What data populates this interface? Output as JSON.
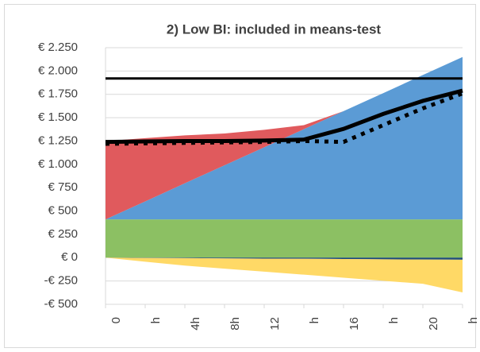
{
  "chart_data": {
    "type": "area",
    "title": "2) Low BI: included in means-test",
    "categories": [
      "0",
      "h",
      "4h",
      "8h",
      "12",
      "h",
      "16",
      "h",
      "20",
      "h"
    ],
    "ylim": [
      -500,
      2250
    ],
    "yticks": [
      {
        "value": -500,
        "label": "-€ 500"
      },
      {
        "value": -250,
        "label": "-€ 250"
      },
      {
        "value": 0,
        "label": "€ 0"
      },
      {
        "value": 250,
        "label": "€ 250"
      },
      {
        "value": 500,
        "label": "€ 500"
      },
      {
        "value": 750,
        "label": "€ 750"
      },
      {
        "value": 1000,
        "label": "€ 1.000"
      },
      {
        "value": 1250,
        "label": "€ 1.250"
      },
      {
        "value": 1500,
        "label": "€ 1.500"
      },
      {
        "value": 1750,
        "label": "€ 1.750"
      },
      {
        "value": 2000,
        "label": "€ 2.000"
      },
      {
        "value": 2250,
        "label": "€ 2.250"
      }
    ],
    "grid": true,
    "series": [
      {
        "type": "area",
        "color": "#8cc063",
        "values": [
          410,
          410,
          410,
          410,
          410,
          410,
          410,
          410,
          410,
          410
        ]
      },
      {
        "type": "area",
        "color": "#5b9bd5",
        "values": [
          0,
          193,
          387,
          580,
          773,
          967,
          1160,
          1353,
          1547,
          1740
        ]
      },
      {
        "type": "area",
        "color": "#e05a5d",
        "values": [
          840,
          677,
          513,
          340,
          187,
          43,
          0,
          0,
          0,
          0
        ]
      },
      {
        "type": "area",
        "color": "#1f4e79",
        "values": [
          0,
          -3,
          -5,
          -8,
          -10,
          -12,
          -15,
          -18,
          -20,
          -22
        ]
      },
      {
        "type": "area",
        "color": "#ffd966",
        "values": [
          0,
          -40,
          -80,
          -110,
          -140,
          -170,
          -200,
          -230,
          -260,
          -350
        ]
      },
      {
        "type": "line",
        "color": "#000000",
        "width": 3,
        "values": [
          1920,
          1920,
          1920,
          1920,
          1920,
          1920,
          1920,
          1920,
          1920,
          1920
        ]
      },
      {
        "type": "line",
        "color": "#000000",
        "width": 5,
        "values": [
          1240,
          1245,
          1250,
          1250,
          1255,
          1265,
          1380,
          1540,
          1680,
          1790
        ]
      },
      {
        "type": "line",
        "color": "#000000",
        "width": 5,
        "dash": "dotted",
        "values": [
          1220,
          1225,
          1230,
          1235,
          1240,
          1250,
          1240,
          1420,
          1600,
          1760
        ]
      }
    ]
  }
}
